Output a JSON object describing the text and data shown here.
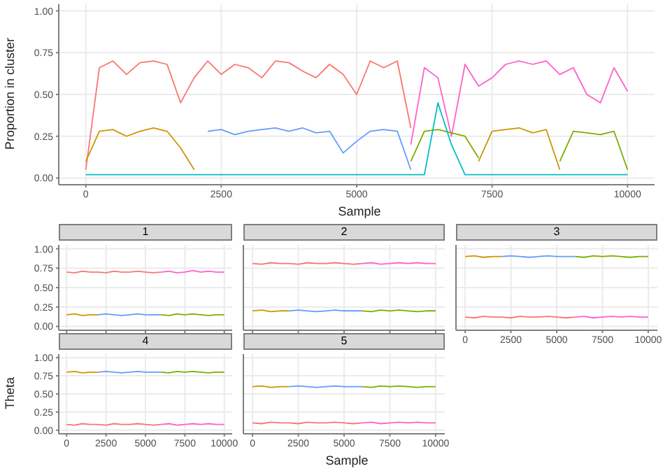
{
  "chart_data": [
    {
      "type": "line",
      "xlabel": "Sample",
      "ylabel": "Proportion in cluster",
      "xlim": [
        -500,
        10500
      ],
      "xticks": [
        0,
        2500,
        5000,
        7500,
        10000
      ],
      "ylim": [
        -0.04,
        1.04
      ],
      "yticks": [
        {
          "value": 0,
          "label": "0.00"
        },
        {
          "value": 0.25,
          "label": "0.25"
        },
        {
          "value": 0.5,
          "label": "0.50"
        },
        {
          "value": 0.75,
          "label": "0.75"
        },
        {
          "value": 1,
          "label": "1.00"
        }
      ],
      "grid": true,
      "x": [
        0,
        250,
        500,
        750,
        1000,
        1250,
        1500,
        1750,
        2000,
        2250,
        2500,
        2750,
        3000,
        3250,
        3500,
        3750,
        4000,
        4250,
        4500,
        4750,
        5000,
        5250,
        5500,
        5750,
        6000,
        6250,
        6500,
        6750,
        7000,
        7250,
        7500,
        7750,
        8000,
        8250,
        8500,
        8750,
        9000,
        9250,
        9500,
        9750,
        10000
      ],
      "series": [
        {
          "color": "#F8766D",
          "values": [
            0.05,
            0.66,
            0.7,
            0.62,
            0.69,
            0.7,
            0.68,
            0.45,
            0.6,
            0.7,
            0.62,
            0.68,
            0.66,
            0.6,
            0.7,
            0.69,
            0.64,
            0.6,
            0.68,
            0.62,
            0.5,
            0.7,
            0.66,
            0.7,
            0.3,
            null,
            null,
            null,
            null,
            null,
            null,
            null,
            null,
            null,
            null,
            null,
            null,
            null,
            null,
            null,
            null
          ]
        },
        {
          "color": "#FF61CC",
          "values": [
            null,
            null,
            null,
            null,
            null,
            null,
            null,
            null,
            null,
            null,
            null,
            null,
            null,
            null,
            null,
            null,
            null,
            null,
            null,
            null,
            null,
            null,
            null,
            null,
            0.2,
            0.66,
            0.6,
            0.25,
            0.68,
            0.55,
            0.6,
            0.68,
            0.7,
            0.68,
            0.7,
            0.62,
            0.66,
            0.5,
            0.45,
            0.66,
            0.52
          ]
        },
        {
          "color": "#CD9600",
          "values": [
            0.1,
            0.28,
            0.29,
            0.25,
            0.28,
            0.3,
            0.28,
            0.18,
            0.05,
            null,
            null,
            null,
            null,
            null,
            null,
            null,
            null,
            null,
            null,
            null,
            null,
            null,
            null,
            null,
            null,
            null,
            null,
            null,
            null,
            0.1,
            0.28,
            0.29,
            0.3,
            0.27,
            0.29,
            0.05,
            null,
            null,
            null,
            null,
            null
          ]
        },
        {
          "color": "#619CFF",
          "values": [
            null,
            null,
            null,
            null,
            null,
            null,
            null,
            null,
            null,
            0.28,
            0.29,
            0.26,
            0.28,
            0.29,
            0.3,
            0.28,
            0.3,
            0.27,
            0.28,
            0.15,
            0.22,
            0.28,
            0.29,
            0.28,
            0.05,
            null,
            null,
            null,
            null,
            null,
            null,
            null,
            null,
            null,
            null,
            null,
            null,
            null,
            null,
            null,
            null
          ]
        },
        {
          "color": "#7CAE00",
          "values": [
            null,
            null,
            null,
            null,
            null,
            null,
            null,
            null,
            null,
            null,
            null,
            null,
            null,
            null,
            null,
            null,
            null,
            null,
            null,
            null,
            null,
            null,
            null,
            null,
            0.1,
            0.28,
            0.29,
            0.27,
            0.25,
            0.12,
            null,
            null,
            null,
            null,
            null,
            0.1,
            0.28,
            0.27,
            0.26,
            0.28,
            0.05
          ]
        },
        {
          "color": "#00BFC4",
          "values": [
            0.02,
            0.02,
            0.02,
            0.02,
            0.02,
            0.02,
            0.02,
            0.02,
            0.02,
            0.02,
            0.02,
            0.02,
            0.02,
            0.02,
            0.02,
            0.02,
            0.02,
            0.02,
            0.02,
            0.02,
            0.02,
            0.02,
            0.02,
            0.02,
            0.02,
            0.02,
            0.45,
            0.2,
            0.02,
            0.02,
            0.02,
            0.02,
            0.02,
            0.02,
            0.02,
            0.02,
            0.02,
            0.02,
            0.02,
            0.02,
            0.02
          ]
        }
      ]
    },
    {
      "type": "line",
      "title": "1",
      "tick_labels": "y",
      "xlim": [
        -500,
        10500
      ],
      "xticks": [
        0,
        2500,
        5000,
        7500,
        10000
      ],
      "ylim": [
        -0.05,
        1.05
      ],
      "yticks": [
        {
          "value": 0,
          "label": "0.00"
        },
        {
          "value": 0.25,
          "label": "0.25"
        },
        {
          "value": 0.5,
          "label": "0.50"
        },
        {
          "value": 0.75,
          "label": "0.75"
        },
        {
          "value": 1,
          "label": "1.00"
        }
      ],
      "grid": true,
      "x": [
        0,
        500,
        1000,
        1500,
        2000,
        2500,
        3000,
        3500,
        4000,
        4500,
        5000,
        5500,
        6000,
        6500,
        7000,
        7500,
        8000,
        8500,
        9000,
        9500,
        10000
      ],
      "series": [
        {
          "color": "#F8766D",
          "values": [
            0.7,
            0.69,
            0.71,
            0.7,
            0.7,
            0.69,
            0.71,
            0.7,
            0.7,
            0.71,
            0.7,
            0.69,
            0.7,
            null,
            null,
            null,
            null,
            null,
            null,
            null,
            null
          ]
        },
        {
          "color": "#FF61CC",
          "values": [
            null,
            null,
            null,
            null,
            null,
            null,
            null,
            null,
            null,
            null,
            null,
            null,
            0.7,
            0.71,
            0.69,
            0.7,
            0.72,
            0.7,
            0.71,
            0.7,
            0.7
          ]
        },
        {
          "color": "#619CFF",
          "values": [
            null,
            null,
            null,
            null,
            0.15,
            0.16,
            0.15,
            0.14,
            0.15,
            0.16,
            0.15,
            0.15,
            0.15,
            null,
            null,
            null,
            null,
            null,
            null,
            null,
            null
          ]
        },
        {
          "color": "#7CAE00",
          "values": [
            null,
            null,
            null,
            null,
            null,
            null,
            null,
            null,
            null,
            null,
            null,
            null,
            0.15,
            0.14,
            0.16,
            0.15,
            0.16,
            0.15,
            0.14,
            0.15,
            0.15
          ]
        },
        {
          "color": "#CD9600",
          "values": [
            0.15,
            0.16,
            0.14,
            0.15,
            0.15,
            null,
            null,
            null,
            null,
            null,
            null,
            null,
            null,
            null,
            null,
            null,
            null,
            null,
            null,
            null,
            null
          ]
        }
      ]
    },
    {
      "type": "line",
      "title": "2",
      "tick_labels": false,
      "xlim": [
        -500,
        10500
      ],
      "xticks": [
        0,
        2500,
        5000,
        7500,
        10000
      ],
      "ylim": [
        -0.05,
        1.05
      ],
      "yticks": [
        0,
        0.25,
        0.5,
        0.75,
        1
      ],
      "grid": true,
      "x": [
        0,
        500,
        1000,
        1500,
        2000,
        2500,
        3000,
        3500,
        4000,
        4500,
        5000,
        5500,
        6000,
        6500,
        7000,
        7500,
        8000,
        8500,
        9000,
        9500,
        10000
      ],
      "series": [
        {
          "color": "#F8766D",
          "values": [
            0.81,
            0.8,
            0.82,
            0.81,
            0.81,
            0.8,
            0.82,
            0.81,
            0.81,
            0.82,
            0.81,
            0.8,
            0.81,
            null,
            null,
            null,
            null,
            null,
            null,
            null,
            null
          ]
        },
        {
          "color": "#FF61CC",
          "values": [
            null,
            null,
            null,
            null,
            null,
            null,
            null,
            null,
            null,
            null,
            null,
            null,
            0.81,
            0.82,
            0.8,
            0.81,
            0.82,
            0.81,
            0.82,
            0.81,
            0.81
          ]
        },
        {
          "color": "#619CFF",
          "values": [
            null,
            null,
            null,
            null,
            0.2,
            0.21,
            0.2,
            0.19,
            0.2,
            0.21,
            0.2,
            0.2,
            0.2,
            null,
            null,
            null,
            null,
            null,
            null,
            null,
            null
          ]
        },
        {
          "color": "#7CAE00",
          "values": [
            null,
            null,
            null,
            null,
            null,
            null,
            null,
            null,
            null,
            null,
            null,
            null,
            0.2,
            0.19,
            0.21,
            0.2,
            0.21,
            0.2,
            0.19,
            0.2,
            0.2
          ]
        },
        {
          "color": "#CD9600",
          "values": [
            0.2,
            0.21,
            0.19,
            0.2,
            0.2,
            null,
            null,
            null,
            null,
            null,
            null,
            null,
            null,
            null,
            null,
            null,
            null,
            null,
            null,
            null,
            null
          ]
        }
      ]
    },
    {
      "type": "line",
      "title": "3",
      "tick_labels": "x",
      "xlim": [
        -500,
        10500
      ],
      "xticks": [
        0,
        2500,
        5000,
        7500,
        10000
      ],
      "ylim": [
        -0.05,
        1.05
      ],
      "yticks": [
        0,
        0.25,
        0.5,
        0.75,
        1
      ],
      "grid": true,
      "x": [
        0,
        500,
        1000,
        1500,
        2000,
        2500,
        3000,
        3500,
        4000,
        4500,
        5000,
        5500,
        6000,
        6500,
        7000,
        7500,
        8000,
        8500,
        9000,
        9500,
        10000
      ],
      "series": [
        {
          "color": "#F8766D",
          "values": [
            0.12,
            0.11,
            0.13,
            0.12,
            0.12,
            0.11,
            0.13,
            0.12,
            0.12,
            0.13,
            0.12,
            0.11,
            0.12,
            null,
            null,
            null,
            null,
            null,
            null,
            null,
            null
          ]
        },
        {
          "color": "#FF61CC",
          "values": [
            null,
            null,
            null,
            null,
            null,
            null,
            null,
            null,
            null,
            null,
            null,
            null,
            0.12,
            0.13,
            0.11,
            0.12,
            0.13,
            0.12,
            0.13,
            0.12,
            0.12
          ]
        },
        {
          "color": "#619CFF",
          "values": [
            null,
            null,
            null,
            null,
            0.9,
            0.91,
            0.9,
            0.89,
            0.9,
            0.91,
            0.9,
            0.9,
            0.9,
            null,
            null,
            null,
            null,
            null,
            null,
            null,
            null
          ]
        },
        {
          "color": "#7CAE00",
          "values": [
            null,
            null,
            null,
            null,
            null,
            null,
            null,
            null,
            null,
            null,
            null,
            null,
            0.9,
            0.89,
            0.91,
            0.9,
            0.91,
            0.9,
            0.89,
            0.9,
            0.9
          ]
        },
        {
          "color": "#CD9600",
          "values": [
            0.9,
            0.91,
            0.89,
            0.9,
            0.9,
            null,
            null,
            null,
            null,
            null,
            null,
            null,
            null,
            null,
            null,
            null,
            null,
            null,
            null,
            null,
            null
          ]
        }
      ]
    },
    {
      "type": "line",
      "title": "4",
      "ylabel": "Theta",
      "xlim": [
        -500,
        10500
      ],
      "xticks": [
        0,
        2500,
        5000,
        7500,
        10000
      ],
      "ylim": [
        -0.05,
        1.05
      ],
      "yticks": [
        {
          "value": 0,
          "label": "0.00"
        },
        {
          "value": 0.25,
          "label": "0.25"
        },
        {
          "value": 0.5,
          "label": "0.50"
        },
        {
          "value": 0.75,
          "label": "0.75"
        },
        {
          "value": 1,
          "label": "1.00"
        }
      ],
      "grid": true,
      "x": [
        0,
        500,
        1000,
        1500,
        2000,
        2500,
        3000,
        3500,
        4000,
        4500,
        5000,
        5500,
        6000,
        6500,
        7000,
        7500,
        8000,
        8500,
        9000,
        9500,
        10000
      ],
      "series": [
        {
          "color": "#F8766D",
          "values": [
            0.08,
            0.07,
            0.09,
            0.08,
            0.08,
            0.07,
            0.09,
            0.08,
            0.08,
            0.09,
            0.08,
            0.07,
            0.08,
            null,
            null,
            null,
            null,
            null,
            null,
            null,
            null
          ]
        },
        {
          "color": "#FF61CC",
          "values": [
            null,
            null,
            null,
            null,
            null,
            null,
            null,
            null,
            null,
            null,
            null,
            null,
            0.08,
            0.09,
            0.07,
            0.08,
            0.09,
            0.08,
            0.09,
            0.08,
            0.08
          ]
        },
        {
          "color": "#619CFF",
          "values": [
            null,
            null,
            null,
            null,
            0.8,
            0.81,
            0.8,
            0.79,
            0.8,
            0.81,
            0.8,
            0.8,
            0.8,
            null,
            null,
            null,
            null,
            null,
            null,
            null,
            null
          ]
        },
        {
          "color": "#7CAE00",
          "values": [
            null,
            null,
            null,
            null,
            null,
            null,
            null,
            null,
            null,
            null,
            null,
            null,
            0.8,
            0.79,
            0.81,
            0.8,
            0.81,
            0.8,
            0.79,
            0.8,
            0.8
          ]
        },
        {
          "color": "#CD9600",
          "values": [
            0.8,
            0.81,
            0.79,
            0.8,
            0.8,
            null,
            null,
            null,
            null,
            null,
            null,
            null,
            null,
            null,
            null,
            null,
            null,
            null,
            null,
            null,
            null
          ]
        }
      ]
    },
    {
      "type": "line",
      "title": "5",
      "xlabel": "Sample",
      "tick_labels": "x",
      "xlim": [
        -500,
        10500
      ],
      "xticks": [
        0,
        2500,
        5000,
        7500,
        10000
      ],
      "ylim": [
        -0.05,
        1.05
      ],
      "yticks": [
        0,
        0.25,
        0.5,
        0.75,
        1
      ],
      "grid": true,
      "x": [
        0,
        500,
        1000,
        1500,
        2000,
        2500,
        3000,
        3500,
        4000,
        4500,
        5000,
        5500,
        6000,
        6500,
        7000,
        7500,
        8000,
        8500,
        9000,
        9500,
        10000
      ],
      "series": [
        {
          "color": "#F8766D",
          "values": [
            0.1,
            0.09,
            0.11,
            0.1,
            0.1,
            0.09,
            0.11,
            0.1,
            0.1,
            0.11,
            0.1,
            0.09,
            0.1,
            null,
            null,
            null,
            null,
            null,
            null,
            null,
            null
          ]
        },
        {
          "color": "#FF61CC",
          "values": [
            null,
            null,
            null,
            null,
            null,
            null,
            null,
            null,
            null,
            null,
            null,
            null,
            0.1,
            0.11,
            0.09,
            0.1,
            0.11,
            0.1,
            0.11,
            0.1,
            0.1
          ]
        },
        {
          "color": "#619CFF",
          "values": [
            null,
            null,
            null,
            null,
            0.6,
            0.61,
            0.6,
            0.59,
            0.6,
            0.61,
            0.6,
            0.6,
            0.6,
            null,
            null,
            null,
            null,
            null,
            null,
            null,
            null
          ]
        },
        {
          "color": "#7CAE00",
          "values": [
            null,
            null,
            null,
            null,
            null,
            null,
            null,
            null,
            null,
            null,
            null,
            null,
            0.6,
            0.59,
            0.61,
            0.6,
            0.61,
            0.6,
            0.59,
            0.6,
            0.6
          ]
        },
        {
          "color": "#CD9600",
          "values": [
            0.6,
            0.61,
            0.59,
            0.6,
            0.6,
            null,
            null,
            null,
            null,
            null,
            null,
            null,
            null,
            null,
            null,
            null,
            null,
            null,
            null,
            null,
            null
          ]
        }
      ]
    }
  ]
}
